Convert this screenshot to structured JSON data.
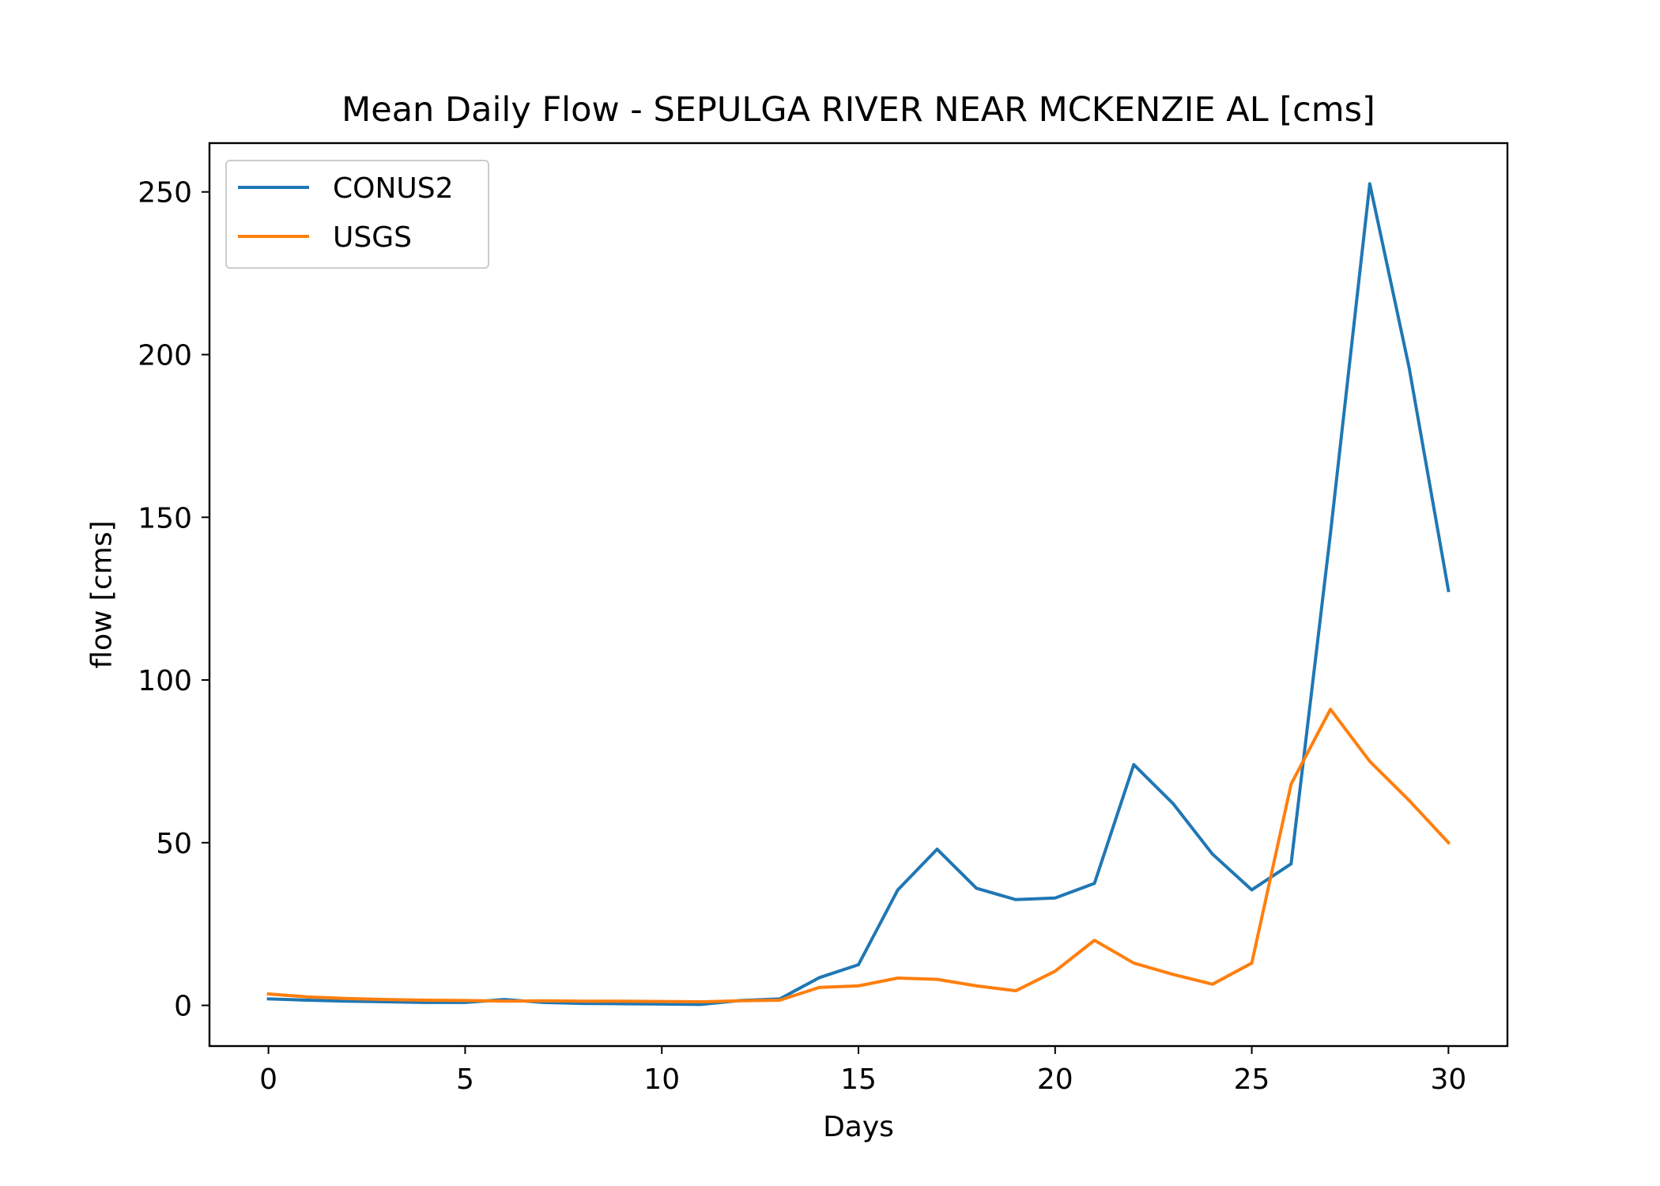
{
  "chart_data": {
    "type": "line",
    "title": "Mean Daily Flow - SEPULGA RIVER NEAR MCKENZIE AL [cms]",
    "xlabel": "Days",
    "ylabel": "flow [cms]",
    "x": [
      0,
      1,
      2,
      3,
      4,
      5,
      6,
      7,
      8,
      9,
      10,
      11,
      12,
      13,
      14,
      15,
      16,
      17,
      18,
      19,
      20,
      21,
      22,
      23,
      24,
      25,
      26,
      27,
      28,
      29,
      30
    ],
    "xlim": [
      -1.5,
      31.5
    ],
    "ylim": [
      -12.5,
      265
    ],
    "xticks": [
      0,
      5,
      10,
      15,
      20,
      25,
      30
    ],
    "yticks": [
      0,
      50,
      100,
      150,
      200,
      250
    ],
    "grid": false,
    "legend_position": "upper left",
    "series": [
      {
        "name": "CONUS2",
        "color": "#1f77b4",
        "values": [
          2.0,
          1.6,
          1.3,
          1.1,
          0.9,
          0.9,
          1.8,
          0.9,
          0.6,
          0.5,
          0.4,
          0.3,
          1.5,
          2.0,
          8.5,
          12.5,
          35.5,
          48.0,
          36.0,
          32.5,
          33.0,
          37.5,
          74.0,
          62.0,
          46.5,
          35.5,
          43.5,
          145.0,
          252.5,
          196.0,
          127.5
        ]
      },
      {
        "name": "USGS",
        "color": "#ff7f0e",
        "values": [
          3.5,
          2.6,
          2.1,
          1.8,
          1.6,
          1.5,
          1.3,
          1.4,
          1.3,
          1.3,
          1.2,
          1.1,
          1.4,
          1.6,
          5.5,
          6.0,
          8.4,
          8.0,
          6.0,
          4.5,
          10.5,
          20.0,
          13.0,
          9.5,
          6.5,
          13.0,
          68.0,
          91.0,
          75.0,
          63.0,
          50.0
        ]
      }
    ]
  }
}
